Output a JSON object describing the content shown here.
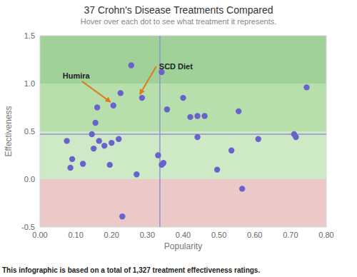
{
  "chart_data": {
    "type": "scatter",
    "title": "37 Crohn's Disease Treatments Compared",
    "subtitle": "Hover over each dot to see what treatment it represents.",
    "x_label": "Popularity",
    "y_label": "Effectiveness",
    "footnote": "This infographic is based on a total of 1,327 treatment effectiveness ratings.",
    "xlim": [
      0,
      0.8
    ],
    "ylim": [
      -0.5,
      1.5
    ],
    "xticks": [
      {
        "value": 0,
        "label": "0.00"
      },
      {
        "value": 0.1,
        "label": "0.10"
      },
      {
        "value": 0.2,
        "label": "0.20"
      },
      {
        "value": 0.3,
        "label": "0.30"
      },
      {
        "value": 0.4,
        "label": "0.40"
      },
      {
        "value": 0.5,
        "label": "0.50"
      },
      {
        "value": 0.6,
        "label": "0.60"
      },
      {
        "value": 0.7,
        "label": "0.70"
      },
      {
        "value": 0.8,
        "label": "0.80"
      }
    ],
    "yticks": [
      -0.5,
      {
        "value": 0,
        "label": "0.0"
      },
      0.5,
      {
        "value": 1,
        "label": "1.0"
      },
      1.5
    ],
    "grid": false,
    "color": "#6a62cc",
    "marker": "circle",
    "x": [
      0.075,
      0.085,
      0.09,
      0.12,
      0.145,
      0.15,
      0.155,
      0.16,
      0.165,
      0.18,
      0.195,
      0.2,
      0.205,
      0.22,
      0.225,
      0.23,
      0.255,
      0.27,
      0.285,
      0.33,
      0.34,
      0.34,
      0.345,
      0.355,
      0.4,
      0.42,
      0.44,
      0.44,
      0.46,
      0.495,
      0.535,
      0.555,
      0.565,
      0.61,
      0.71,
      0.715,
      0.745
    ],
    "values": [
      0.4,
      0.12,
      0.21,
      0.16,
      0.47,
      0.32,
      0.59,
      0.75,
      0.4,
      0.35,
      0.15,
      0.38,
      0.77,
      0.42,
      0.9,
      -0.39,
      1.19,
      0.05,
      0.85,
      0.25,
      1.12,
      0.15,
      0.17,
      0.73,
      0.85,
      0.65,
      0.66,
      0.44,
      0.66,
      0.1,
      0.3,
      0.71,
      -0.1,
      0.42,
      0.47,
      0.44,
      0.96
    ],
    "bands": [
      {
        "from": 1,
        "to": 1.5,
        "color": "#9fd199"
      },
      {
        "from": 0.5,
        "to": 1,
        "color": "#b6dfab"
      },
      {
        "from": 0,
        "to": 0.5,
        "color": "#cde9c6"
      },
      {
        "from": -0.5,
        "to": 0,
        "color": "#ecc9c9"
      }
    ],
    "reference_lines": {
      "x": 0.335,
      "y": 0.47,
      "color": "#9090da"
    },
    "annotations": [
      {
        "text": "Humira",
        "x": 0.205,
        "y": 0.77,
        "color": "#e07b1a"
      },
      {
        "text": "SCD Diet",
        "x": 0.285,
        "y": 0.85,
        "color": "#e07b1a"
      }
    ]
  }
}
